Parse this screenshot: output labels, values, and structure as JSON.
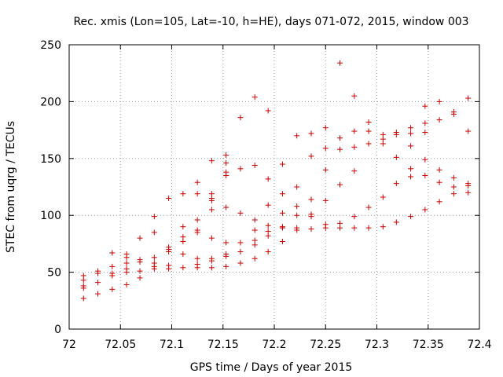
{
  "chart_data": {
    "type": "scatter",
    "title": "Rec. xmis (Lon=105, Lat=-10, h=HE), days 071-072, 2015, window 003",
    "xlabel": "GPS time / Days of year 2015",
    "ylabel": "STEC from uqrg / TECUs",
    "xlim": [
      72,
      72.4
    ],
    "ylim": [
      0,
      250
    ],
    "xticks": [
      "72",
      "72.05",
      "72.1",
      "72.15",
      "72.2",
      "72.25",
      "72.3",
      "72.35",
      "72.4"
    ],
    "yticks": [
      "0",
      "50",
      "100",
      "150",
      "200",
      "250"
    ],
    "grid": true,
    "legend": "none",
    "marker": "plus",
    "color": "#cc0000",
    "points": [
      [
        72.014,
        27
      ],
      [
        72.014,
        36
      ],
      [
        72.014,
        38
      ],
      [
        72.014,
        43
      ],
      [
        72.014,
        47
      ],
      [
        72.028,
        31
      ],
      [
        72.028,
        41
      ],
      [
        72.028,
        49
      ],
      [
        72.028,
        51
      ],
      [
        72.042,
        35
      ],
      [
        72.042,
        47
      ],
      [
        72.042,
        49
      ],
      [
        72.042,
        55
      ],
      [
        72.042,
        67
      ],
      [
        72.056,
        39
      ],
      [
        72.056,
        50
      ],
      [
        72.056,
        53
      ],
      [
        72.056,
        58
      ],
      [
        72.056,
        63
      ],
      [
        72.056,
        66
      ],
      [
        72.069,
        45
      ],
      [
        72.069,
        51
      ],
      [
        72.069,
        59
      ],
      [
        72.069,
        61
      ],
      [
        72.069,
        80
      ],
      [
        72.083,
        53
      ],
      [
        72.083,
        55
      ],
      [
        72.083,
        58
      ],
      [
        72.083,
        63
      ],
      [
        72.083,
        85
      ],
      [
        72.083,
        99
      ],
      [
        72.097,
        53
      ],
      [
        72.097,
        56
      ],
      [
        72.097,
        68
      ],
      [
        72.097,
        70
      ],
      [
        72.097,
        72
      ],
      [
        72.097,
        115
      ],
      [
        72.111,
        54
      ],
      [
        72.111,
        66
      ],
      [
        72.111,
        77
      ],
      [
        72.111,
        81
      ],
      [
        72.111,
        90
      ],
      [
        72.111,
        119
      ],
      [
        72.125,
        54
      ],
      [
        72.125,
        57
      ],
      [
        72.125,
        62
      ],
      [
        72.125,
        85
      ],
      [
        72.125,
        87
      ],
      [
        72.125,
        96
      ],
      [
        72.125,
        119
      ],
      [
        72.125,
        129
      ],
      [
        72.139,
        54
      ],
      [
        72.139,
        60
      ],
      [
        72.139,
        62
      ],
      [
        72.139,
        80
      ],
      [
        72.139,
        105
      ],
      [
        72.139,
        113
      ],
      [
        72.139,
        115
      ],
      [
        72.139,
        119
      ],
      [
        72.139,
        148
      ],
      [
        72.153,
        55
      ],
      [
        72.153,
        64
      ],
      [
        72.153,
        66
      ],
      [
        72.153,
        76
      ],
      [
        72.153,
        107
      ],
      [
        72.153,
        135
      ],
      [
        72.153,
        138
      ],
      [
        72.153,
        146
      ],
      [
        72.153,
        153
      ],
      [
        72.167,
        58
      ],
      [
        72.167,
        68
      ],
      [
        72.167,
        76
      ],
      [
        72.167,
        102
      ],
      [
        72.167,
        141
      ],
      [
        72.167,
        186
      ],
      [
        72.181,
        62
      ],
      [
        72.181,
        74
      ],
      [
        72.181,
        78
      ],
      [
        72.181,
        87
      ],
      [
        72.181,
        96
      ],
      [
        72.181,
        144
      ],
      [
        72.181,
        204
      ],
      [
        72.194,
        68
      ],
      [
        72.194,
        82
      ],
      [
        72.194,
        86
      ],
      [
        72.194,
        91
      ],
      [
        72.194,
        109
      ],
      [
        72.194,
        132
      ],
      [
        72.194,
        192
      ],
      [
        72.208,
        77
      ],
      [
        72.208,
        89
      ],
      [
        72.208,
        90
      ],
      [
        72.208,
        102
      ],
      [
        72.208,
        119
      ],
      [
        72.208,
        145
      ],
      [
        72.222,
        87
      ],
      [
        72.222,
        89
      ],
      [
        72.222,
        100
      ],
      [
        72.222,
        108
      ],
      [
        72.222,
        125
      ],
      [
        72.222,
        170
      ],
      [
        72.236,
        88
      ],
      [
        72.236,
        99
      ],
      [
        72.236,
        101
      ],
      [
        72.236,
        114
      ],
      [
        72.236,
        152
      ],
      [
        72.236,
        172
      ],
      [
        72.25,
        89
      ],
      [
        72.25,
        92
      ],
      [
        72.25,
        113
      ],
      [
        72.25,
        140
      ],
      [
        72.25,
        159
      ],
      [
        72.25,
        177
      ],
      [
        72.264,
        89
      ],
      [
        72.264,
        93
      ],
      [
        72.264,
        127
      ],
      [
        72.264,
        158
      ],
      [
        72.264,
        168
      ],
      [
        72.264,
        234
      ],
      [
        72.278,
        89
      ],
      [
        72.278,
        99
      ],
      [
        72.278,
        139
      ],
      [
        72.278,
        160
      ],
      [
        72.278,
        174
      ],
      [
        72.278,
        205
      ],
      [
        72.292,
        89
      ],
      [
        72.292,
        107
      ],
      [
        72.292,
        163
      ],
      [
        72.292,
        174
      ],
      [
        72.292,
        182
      ],
      [
        72.306,
        90
      ],
      [
        72.306,
        116
      ],
      [
        72.306,
        163
      ],
      [
        72.306,
        167
      ],
      [
        72.306,
        171
      ],
      [
        72.319,
        94
      ],
      [
        72.319,
        128
      ],
      [
        72.319,
        151
      ],
      [
        72.319,
        171
      ],
      [
        72.319,
        173
      ],
      [
        72.333,
        99
      ],
      [
        72.333,
        134
      ],
      [
        72.333,
        141
      ],
      [
        72.333,
        161
      ],
      [
        72.333,
        172
      ],
      [
        72.333,
        177
      ],
      [
        72.347,
        105
      ],
      [
        72.347,
        135
      ],
      [
        72.347,
        149
      ],
      [
        72.347,
        173
      ],
      [
        72.347,
        181
      ],
      [
        72.347,
        196
      ],
      [
        72.361,
        112
      ],
      [
        72.361,
        129
      ],
      [
        72.361,
        140
      ],
      [
        72.361,
        184
      ],
      [
        72.361,
        200
      ],
      [
        72.375,
        119
      ],
      [
        72.375,
        125
      ],
      [
        72.375,
        133
      ],
      [
        72.375,
        189
      ],
      [
        72.375,
        191
      ],
      [
        72.389,
        120
      ],
      [
        72.389,
        126
      ],
      [
        72.389,
        128
      ],
      [
        72.389,
        174
      ],
      [
        72.389,
        203
      ]
    ]
  }
}
